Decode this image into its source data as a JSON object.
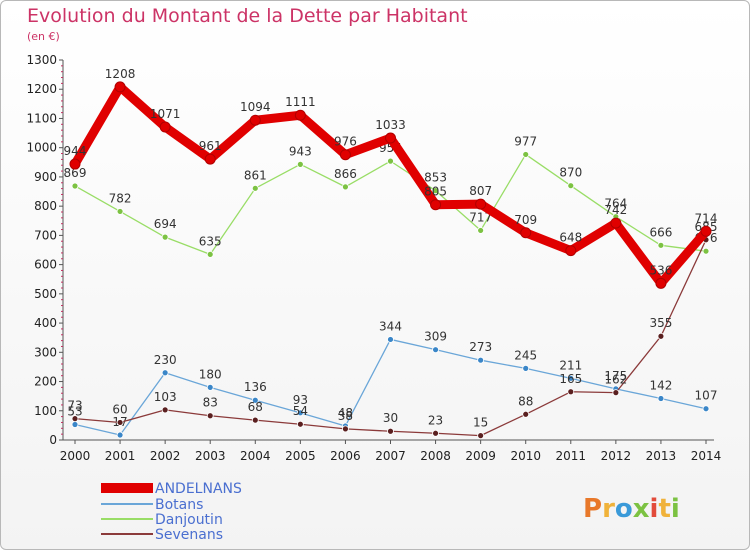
{
  "header": {
    "title": "Evolution du Montant de la Dette par Habitant",
    "unit": "(en €)"
  },
  "logo": {
    "letters": [
      "P",
      "r",
      "o",
      "x",
      "i",
      "t",
      "i"
    ],
    "colors": [
      "#e8782a",
      "#f0b23a",
      "#3a9ad9",
      "#7cc242",
      "#e24b3b",
      "#f0b23a",
      "#7cc242"
    ]
  },
  "chart_data": {
    "type": "line",
    "title": "Evolution du Montant de la Dette par Habitant",
    "ylabel": "(en €)",
    "xlabel": "",
    "x": [
      "2000",
      "2001",
      "2002",
      "2003",
      "2004",
      "2005",
      "2006",
      "2007",
      "2008",
      "2009",
      "2010",
      "2011",
      "2012",
      "2013",
      "2014"
    ],
    "ylim": [
      0,
      1300
    ],
    "yticks": [
      0,
      100,
      200,
      300,
      400,
      500,
      600,
      700,
      800,
      900,
      1000,
      1100,
      1200,
      1300
    ],
    "grid": false,
    "legend_position": "bottom-left",
    "series": [
      {
        "name": "ANDELNANS",
        "color": "#e00000",
        "width": 9,
        "marker": "#e00000",
        "values": [
          944,
          1208,
          1071,
          961,
          1094,
          1111,
          976,
          1033,
          805,
          807,
          709,
          648,
          742,
          536,
          714
        ]
      },
      {
        "name": "Botans",
        "color": "#6aa6d8",
        "width": 1.3,
        "marker": "#3a86c8",
        "values": [
          53,
          17,
          230,
          180,
          136,
          93,
          48,
          344,
          309,
          273,
          245,
          211,
          175,
          142,
          107
        ]
      },
      {
        "name": "Danjoutin",
        "color": "#99dd66",
        "width": 1.3,
        "marker": "#7cc242",
        "values": [
          869,
          782,
          694,
          635,
          861,
          943,
          866,
          954,
          853,
          717,
          977,
          870,
          764,
          666,
          646
        ]
      },
      {
        "name": "Sevenans",
        "color": "#8b3a3a",
        "width": 1.3,
        "marker": "#5a1f1f",
        "values": [
          73,
          60,
          103,
          83,
          68,
          54,
          38,
          30,
          23,
          15,
          88,
          165,
          162,
          355,
          685
        ]
      }
    ]
  }
}
